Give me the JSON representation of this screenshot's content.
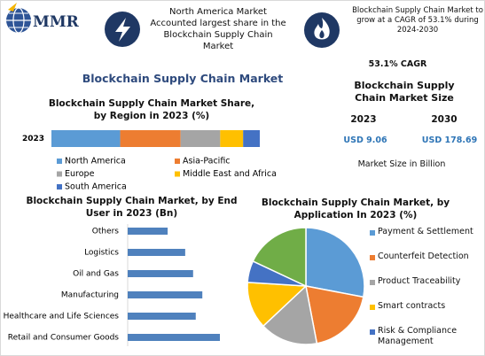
{
  "header": {
    "logo": "MMR",
    "highlights": [
      "North America Market Accounted largest share in the Blockchain Supply Chain Market",
      "Blockchain Supply Chain Market to grow at a CAGR of 53.1% during 2024-2030"
    ],
    "title": "Blockchain Supply Chain Market"
  },
  "market_size": {
    "cagr": "53.1% CAGR",
    "title": "Blockchain Supply Chain Market Size",
    "years": [
      "2023",
      "2030"
    ],
    "values": [
      "USD 9.06",
      "USD 178.69"
    ],
    "note": "Market Size in Billion"
  },
  "chart_data": [
    {
      "type": "stacked-hbar",
      "title": "Blockchain Supply Chain Market Share, by Region in 2023 (%)",
      "categories": [
        "2023"
      ],
      "series": [
        {
          "name": "North America",
          "color": "#5b9bd5",
          "values": [
            33
          ]
        },
        {
          "name": "Asia-Pacific",
          "color": "#ed7d31",
          "values": [
            29
          ]
        },
        {
          "name": "Europe",
          "color": "#a5a5a5",
          "values": [
            19
          ]
        },
        {
          "name": "Middle East and Africa",
          "color": "#ffc000",
          "values": [
            11
          ]
        },
        {
          "name": "South America",
          "color": "#4472c4",
          "values": [
            8
          ]
        }
      ]
    },
    {
      "type": "hbar",
      "title": "Blockchain Supply Chain Market, by End User in 2023 (Bn)",
      "color": "#4f81bd",
      "categories": [
        "Others",
        "Logistics",
        "Oil and Gas",
        "Manufacturing",
        "Healthcare and Life Sciences",
        "Retail and Consumer Goods"
      ],
      "values": [
        0.91,
        1.31,
        1.49,
        1.7,
        1.55,
        2.1
      ]
    },
    {
      "type": "pie",
      "title": "Blockchain Supply Chain Market, by Application In 2023 (%)",
      "categories": [
        "Payment & Settlement",
        "Counterfeit Detection",
        "Product Traceability",
        "Smart contracts",
        "Risk & Compliance Management",
        null
      ],
      "values": [
        28,
        19,
        16,
        13,
        6,
        18
      ],
      "colors": [
        "#5b9bd5",
        "#ed7d31",
        "#a5a5a5",
        "#ffc000",
        "#4472c4",
        "#70ad47"
      ]
    }
  ]
}
